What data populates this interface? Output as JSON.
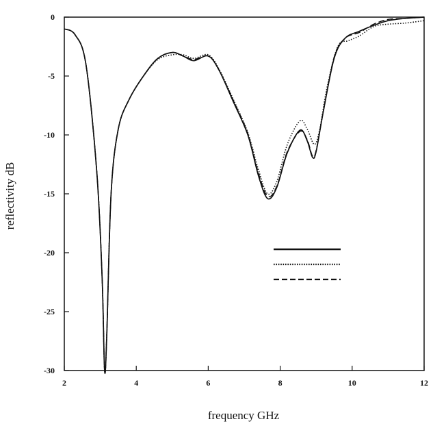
{
  "chart_data": {
    "type": "line",
    "title": "",
    "xlabel": "frequency GHz",
    "ylabel": "reflectivity dB",
    "xlim": [
      2,
      12
    ],
    "ylim": [
      -30,
      0
    ],
    "xticks": [
      2,
      4,
      6,
      8,
      10,
      12
    ],
    "yticks": [
      0,
      -5,
      -10,
      -15,
      -20,
      -25,
      -30
    ],
    "grid": false,
    "legend": {
      "position": "lower-right",
      "labels_shown": false
    },
    "series": [
      {
        "style": "solid",
        "points": [
          [
            2.0,
            -1.0
          ],
          [
            2.3,
            -1.5
          ],
          [
            2.6,
            -4.0
          ],
          [
            2.9,
            -13.0
          ],
          [
            3.05,
            -22.0
          ],
          [
            3.12,
            -30.0
          ],
          [
            3.18,
            -27.0
          ],
          [
            3.3,
            -15.0
          ],
          [
            3.5,
            -9.5
          ],
          [
            3.8,
            -7.0
          ],
          [
            4.2,
            -5.0
          ],
          [
            4.6,
            -3.5
          ],
          [
            5.0,
            -3.0
          ],
          [
            5.3,
            -3.3
          ],
          [
            5.6,
            -3.7
          ],
          [
            6.0,
            -3.3
          ],
          [
            6.3,
            -4.5
          ],
          [
            6.7,
            -7.2
          ],
          [
            7.1,
            -10.0
          ],
          [
            7.4,
            -13.5
          ],
          [
            7.65,
            -15.4
          ],
          [
            7.9,
            -14.5
          ],
          [
            8.2,
            -11.5
          ],
          [
            8.55,
            -9.6
          ],
          [
            8.75,
            -10.5
          ],
          [
            8.9,
            -11.9
          ],
          [
            9.0,
            -11.4
          ],
          [
            9.2,
            -8.0
          ],
          [
            9.5,
            -3.5
          ],
          [
            9.8,
            -1.8
          ],
          [
            10.2,
            -1.2
          ],
          [
            10.6,
            -0.7
          ],
          [
            11.0,
            -0.3
          ],
          [
            11.5,
            -0.1
          ],
          [
            12.0,
            0.0
          ]
        ]
      },
      {
        "style": "dotted",
        "points": [
          [
            2.0,
            -1.0
          ],
          [
            2.3,
            -1.5
          ],
          [
            2.6,
            -4.0
          ],
          [
            2.9,
            -13.0
          ],
          [
            3.05,
            -22.0
          ],
          [
            3.12,
            -30.0
          ],
          [
            3.18,
            -27.0
          ],
          [
            3.3,
            -15.0
          ],
          [
            3.5,
            -9.5
          ],
          [
            3.8,
            -7.0
          ],
          [
            4.2,
            -5.0
          ],
          [
            4.6,
            -3.6
          ],
          [
            5.0,
            -3.2
          ],
          [
            5.3,
            -3.2
          ],
          [
            5.6,
            -3.5
          ],
          [
            6.0,
            -3.2
          ],
          [
            6.3,
            -4.4
          ],
          [
            6.7,
            -7.0
          ],
          [
            7.1,
            -9.8
          ],
          [
            7.4,
            -13.0
          ],
          [
            7.65,
            -15.0
          ],
          [
            7.9,
            -14.0
          ],
          [
            8.2,
            -10.8
          ],
          [
            8.55,
            -8.8
          ],
          [
            8.75,
            -9.5
          ],
          [
            8.95,
            -10.8
          ],
          [
            9.1,
            -9.5
          ],
          [
            9.3,
            -6.0
          ],
          [
            9.6,
            -2.5
          ],
          [
            9.9,
            -2.0
          ],
          [
            10.2,
            -1.6
          ],
          [
            10.6,
            -0.8
          ],
          [
            11.0,
            -0.6
          ],
          [
            11.5,
            -0.5
          ],
          [
            12.0,
            -0.3
          ]
        ]
      },
      {
        "style": "dashed",
        "points": [
          [
            2.0,
            -1.0
          ],
          [
            2.3,
            -1.5
          ],
          [
            2.6,
            -4.0
          ],
          [
            2.9,
            -13.0
          ],
          [
            3.05,
            -22.0
          ],
          [
            3.12,
            -30.0
          ],
          [
            3.18,
            -27.0
          ],
          [
            3.3,
            -15.0
          ],
          [
            3.5,
            -9.5
          ],
          [
            3.8,
            -7.0
          ],
          [
            4.2,
            -5.0
          ],
          [
            4.6,
            -3.5
          ],
          [
            5.0,
            -3.0
          ],
          [
            5.3,
            -3.3
          ],
          [
            5.6,
            -3.6
          ],
          [
            6.0,
            -3.3
          ],
          [
            6.3,
            -4.5
          ],
          [
            6.7,
            -7.1
          ],
          [
            7.1,
            -9.9
          ],
          [
            7.4,
            -13.3
          ],
          [
            7.65,
            -15.2
          ],
          [
            7.9,
            -14.4
          ],
          [
            8.2,
            -11.4
          ],
          [
            8.55,
            -9.7
          ],
          [
            8.75,
            -10.4
          ],
          [
            8.9,
            -11.8
          ],
          [
            9.0,
            -11.3
          ],
          [
            9.2,
            -8.0
          ],
          [
            9.5,
            -3.4
          ],
          [
            9.8,
            -1.8
          ],
          [
            10.2,
            -1.3
          ],
          [
            10.6,
            -0.6
          ],
          [
            11.0,
            -0.2
          ],
          [
            11.5,
            -0.1
          ],
          [
            12.0,
            0.0
          ]
        ]
      }
    ]
  }
}
